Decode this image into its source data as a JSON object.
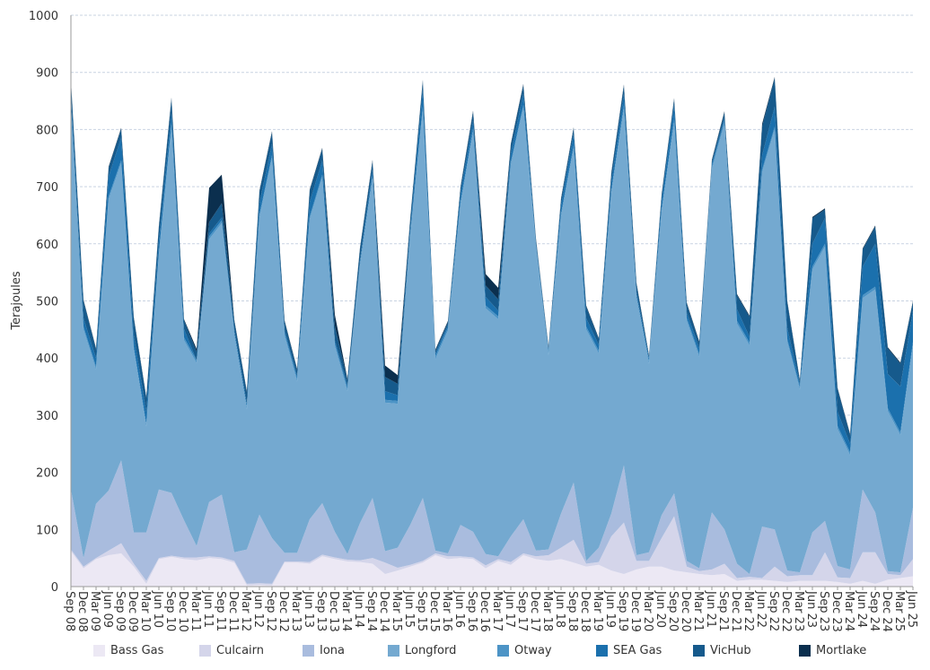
{
  "chart_data": {
    "type": "area",
    "stacked": true,
    "ylabel": "Terajoules",
    "xlabel": "",
    "ylim": [
      0,
      1000
    ],
    "yticks": [
      0,
      100,
      200,
      300,
      400,
      500,
      600,
      700,
      800,
      900,
      1000
    ],
    "grid": true,
    "legend_position": "bottom",
    "x": [
      "Sep 08",
      "Dec 08",
      "Mar 09",
      "Jun 09",
      "Sep 09",
      "Dec 09",
      "Mar 10",
      "Jun 10",
      "Sep 10",
      "Dec 10",
      "Mar 11",
      "Jun 11",
      "Sep 11",
      "Dec 11",
      "Mar 12",
      "Jun 12",
      "Sep 12",
      "Dec 12",
      "Mar 13",
      "Jun 13",
      "Sep 13",
      "Dec 13",
      "Mar 14",
      "Jun 14",
      "Sep 14",
      "Dec 14",
      "Mar 15",
      "Jun 15",
      "Sep 15",
      "Dec 15",
      "Mar 16",
      "Jun 16",
      "Sep 16",
      "Dec 16",
      "Mar 17",
      "Jun 17",
      "Sep 17",
      "Dec 17",
      "Mar 18",
      "Jun 18",
      "Sep 18",
      "Dec 18",
      "Mar 19",
      "Jun 19",
      "Sep 19",
      "Dec 19",
      "Mar 20",
      "Jun 20",
      "Sep 20",
      "Dec 20",
      "Mar 21",
      "Jun 21",
      "Sep 21",
      "Dec 21",
      "Mar 22",
      "Jun 22",
      "Sep 22",
      "Dec 22",
      "Mar 23",
      "Jun 23",
      "Sep 23",
      "Dec 23",
      "Mar 24",
      "Jun 24",
      "Sep 24",
      "Dec 24",
      "Mar 25",
      "Jun 25"
    ],
    "series": [
      {
        "name": "Bass Gas",
        "color": "#ece8f4",
        "values": [
          62,
          32,
          48,
          55,
          58,
          35,
          5,
          48,
          52,
          48,
          46,
          50,
          48,
          42,
          2,
          3,
          2,
          42,
          42,
          40,
          53,
          48,
          44,
          43,
          40,
          22,
          28,
          35,
          42,
          55,
          48,
          50,
          48,
          32,
          45,
          38,
          55,
          48,
          45,
          48,
          42,
          35,
          38,
          28,
          22,
          30,
          35,
          35,
          28,
          25,
          22,
          20,
          22,
          10,
          12,
          12,
          10,
          8,
          10,
          10,
          10,
          8,
          5,
          10,
          5,
          12,
          15,
          18
        ]
      },
      {
        "name": "Culcairn",
        "color": "#d4d5ea",
        "values": [
          3,
          3,
          2,
          8,
          18,
          5,
          5,
          2,
          2,
          3,
          5,
          3,
          3,
          3,
          3,
          3,
          3,
          2,
          2,
          3,
          3,
          3,
          3,
          3,
          10,
          20,
          5,
          3,
          3,
          3,
          5,
          3,
          3,
          5,
          3,
          5,
          3,
          5,
          10,
          20,
          40,
          5,
          5,
          60,
          90,
          15,
          10,
          50,
          95,
          10,
          5,
          10,
          18,
          5,
          5,
          3,
          25,
          10,
          10,
          10,
          50,
          8,
          10,
          50,
          55,
          10,
          5,
          30
        ]
      },
      {
        "name": "Iona",
        "color": "#a9bcde",
        "values": [
          105,
          15,
          95,
          105,
          145,
          55,
          85,
          120,
          110,
          65,
          20,
          95,
          110,
          15,
          60,
          120,
          80,
          15,
          15,
          75,
          90,
          45,
          10,
          65,
          105,
          20,
          35,
          70,
          110,
          5,
          5,
          55,
          45,
          20,
          5,
          45,
          60,
          10,
          10,
          60,
          100,
          5,
          25,
          40,
          100,
          10,
          15,
          40,
          40,
          10,
          5,
          100,
          60,
          25,
          5,
          90,
          65,
          10,
          5,
          75,
          55,
          20,
          15,
          110,
          70,
          5,
          5,
          90
        ]
      },
      {
        "name": "Longford",
        "color": "#74a9d0",
        "values": [
          670,
          400,
          235,
          510,
          520,
          320,
          185,
          410,
          640,
          315,
          320,
          460,
          475,
          380,
          245,
          520,
          665,
          380,
          300,
          525,
          570,
          325,
          285,
          450,
          560,
          260,
          252,
          505,
          680,
          335,
          390,
          560,
          700,
          430,
          415,
          650,
          720,
          530,
          340,
          520,
          585,
          405,
          340,
          560,
          625,
          450,
          330,
          530,
          650,
          420,
          370,
          600,
          710,
          420,
          400,
          620,
          700,
          400,
          320,
          460,
          480,
          240,
          200,
          335,
          390,
          280,
          240,
          285
        ]
      },
      {
        "name": "Otway",
        "color": "#4d94c6",
        "values": [
          5,
          5,
          5,
          5,
          5,
          5,
          5,
          5,
          5,
          5,
          5,
          5,
          5,
          5,
          5,
          5,
          5,
          5,
          5,
          5,
          5,
          5,
          5,
          5,
          5,
          5,
          5,
          5,
          5,
          5,
          5,
          5,
          5,
          5,
          5,
          5,
          5,
          5,
          5,
          5,
          5,
          5,
          5,
          5,
          5,
          5,
          5,
          5,
          5,
          5,
          5,
          5,
          5,
          5,
          5,
          5,
          5,
          5,
          5,
          5,
          5,
          5,
          5,
          5,
          5,
          5,
          5,
          5
        ]
      },
      {
        "name": "SEA Gas",
        "color": "#1b70ad",
        "values": [
          15,
          15,
          15,
          35,
          40,
          20,
          20,
          20,
          20,
          15,
          0,
          5,
          5,
          5,
          5,
          20,
          20,
          5,
          5,
          25,
          25,
          5,
          5,
          5,
          10,
          15,
          10,
          10,
          30,
          5,
          5,
          15,
          15,
          15,
          10,
          15,
          20,
          5,
          5,
          15,
          20,
          15,
          10,
          15,
          20,
          5,
          5,
          15,
          25,
          10,
          10,
          5,
          5,
          20,
          10,
          25,
          35,
          20,
          5,
          40,
          45,
          25,
          15,
          50,
          75,
          60,
          80,
          55
        ]
      },
      {
        "name": "VicHub",
        "color": "#165a8c",
        "values": [
          25,
          30,
          15,
          15,
          15,
          30,
          25,
          25,
          25,
          15,
          15,
          20,
          25,
          15,
          20,
          20,
          20,
          15,
          10,
          20,
          20,
          25,
          10,
          20,
          15,
          25,
          20,
          15,
          15,
          5,
          5,
          10,
          15,
          20,
          20,
          15,
          15,
          5,
          3,
          10,
          10,
          20,
          10,
          15,
          15,
          15,
          3,
          10,
          10,
          15,
          10,
          5,
          10,
          25,
          35,
          50,
          50,
          45,
          5,
          45,
          15,
          40,
          15,
          30,
          30,
          45,
          40,
          15
        ]
      },
      {
        "name": "Mortlake",
        "color": "#0b2f4e",
        "values": [
          2,
          2,
          2,
          2,
          2,
          2,
          2,
          2,
          2,
          2,
          5,
          60,
          50,
          2,
          2,
          2,
          2,
          2,
          2,
          2,
          2,
          20,
          2,
          2,
          2,
          20,
          15,
          2,
          2,
          2,
          2,
          2,
          2,
          20,
          20,
          2,
          2,
          2,
          2,
          2,
          2,
          2,
          2,
          2,
          2,
          2,
          2,
          2,
          2,
          2,
          2,
          2,
          2,
          2,
          2,
          5,
          2,
          2,
          2,
          2,
          2,
          2,
          2,
          2,
          2,
          2,
          2,
          2
        ]
      }
    ]
  }
}
